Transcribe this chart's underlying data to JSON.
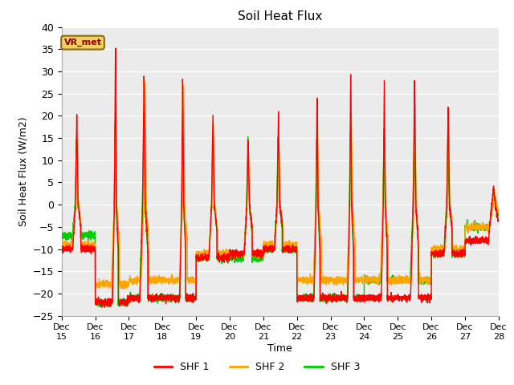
{
  "title": "Soil Heat Flux",
  "ylabel": "Soil Heat Flux (W/m2)",
  "xlabel": "Time",
  "ylim": [
    -25,
    40
  ],
  "colors": {
    "SHF 1": "#ff0000",
    "SHF 2": "#ffa500",
    "SHF 3": "#00cc00"
  },
  "legend_label": "VR_met",
  "plot_bg": "#ebebeb",
  "linewidth": 1.0,
  "yticks": [
    -25,
    -20,
    -15,
    -10,
    -5,
    0,
    5,
    10,
    15,
    20,
    25,
    30,
    35,
    40
  ],
  "xtick_labels": [
    "Dec\n15",
    "Dec\n16",
    "Dec\n17",
    "Dec\n18",
    "Dec\n19",
    "Dec\n20",
    "Dec\n21",
    "Dec\n22",
    "Dec\n23",
    "Dec\n24",
    "Dec\n25",
    "Dec\n26",
    "Dec\n27",
    "Dec\n28"
  ],
  "n_points_per_day": 288
}
